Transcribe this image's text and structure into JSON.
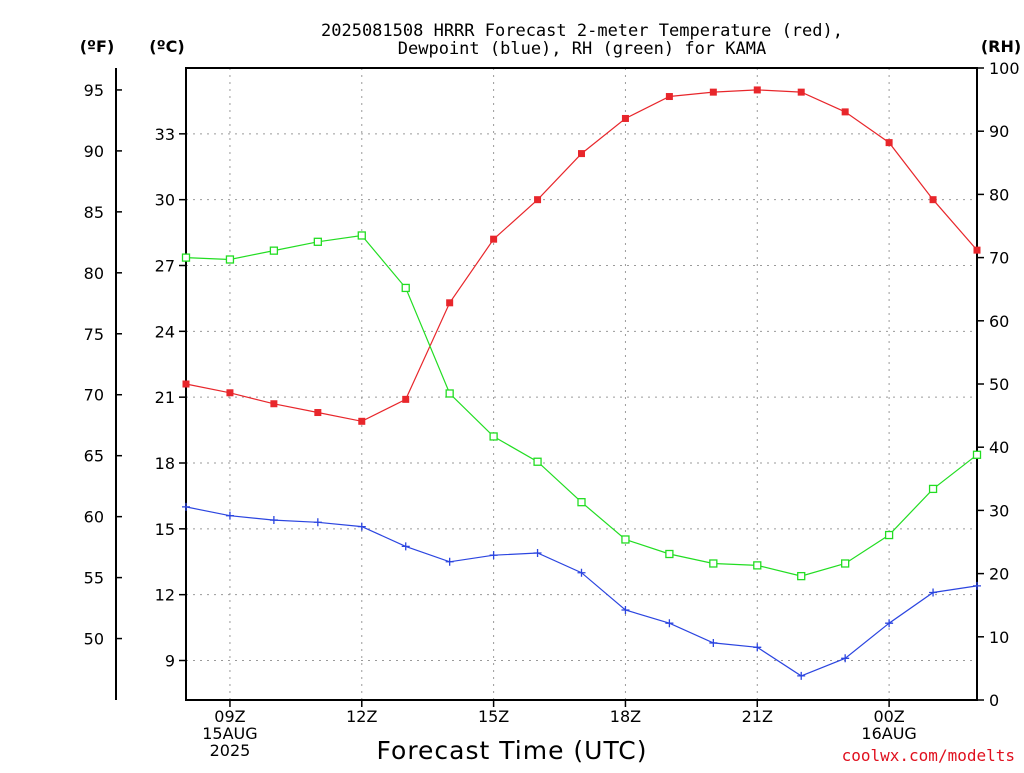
{
  "chart_data": {
    "type": "line",
    "title_lines": [
      "2025081508 HRRR Forecast 2-meter Temperature (red),",
      "Dewpoint (blue), RH (green) for KAMA"
    ],
    "xlabel": "Forecast Time (UTC)",
    "credit": "coolwx.com/modelts",
    "units": {
      "f": "(ºF)",
      "c": "(ºC)",
      "rh": "(RH)"
    },
    "x_hours": [
      8,
      9,
      10,
      11,
      12,
      13,
      14,
      15,
      16,
      17,
      18,
      19,
      20,
      21,
      22,
      23,
      24,
      25,
      26
    ],
    "x_range": [
      8,
      26
    ],
    "x_ticks": [
      {
        "hour": 9,
        "lines": [
          "09Z",
          "15AUG",
          "2025"
        ]
      },
      {
        "hour": 12,
        "lines": [
          "12Z"
        ]
      },
      {
        "hour": 15,
        "lines": [
          "15Z"
        ]
      },
      {
        "hour": 18,
        "lines": [
          "18Z"
        ]
      },
      {
        "hour": 21,
        "lines": [
          "21Z"
        ]
      },
      {
        "hour": 24,
        "lines": [
          "00Z",
          "16AUG"
        ]
      }
    ],
    "celsius_axis": {
      "range": [
        7.2,
        36.0
      ],
      "ticks": [
        9,
        12,
        15,
        18,
        21,
        24,
        27,
        30,
        33
      ]
    },
    "fahrenheit_axis": {
      "ticks": [
        50,
        55,
        60,
        65,
        70,
        75,
        80,
        85,
        90,
        95
      ]
    },
    "rh_axis": {
      "range": [
        0,
        100
      ],
      "ticks": [
        0,
        10,
        20,
        30,
        40,
        50,
        60,
        70,
        80,
        90,
        100
      ]
    },
    "series": [
      {
        "name": "Temperature",
        "axis": "celsius",
        "color": "#e8262b",
        "marker": "filled-square",
        "values": [
          21.6,
          21.2,
          20.7,
          20.3,
          19.9,
          20.9,
          25.3,
          28.2,
          30.0,
          32.1,
          33.7,
          34.7,
          34.9,
          35.0,
          34.9,
          34.0,
          32.6,
          30.0,
          27.7
        ]
      },
      {
        "name": "Dewpoint",
        "axis": "celsius",
        "color": "#2b45e0",
        "marker": "plus",
        "values": [
          16.0,
          15.6,
          15.4,
          15.3,
          15.1,
          14.2,
          13.5,
          13.8,
          13.9,
          13.0,
          11.3,
          10.7,
          9.8,
          9.6,
          8.3,
          9.1,
          10.7,
          12.1,
          12.4
        ]
      },
      {
        "name": "RH",
        "axis": "rh",
        "color": "#22dd22",
        "marker": "open-square",
        "values": [
          70.0,
          69.7,
          71.1,
          72.5,
          73.5,
          65.2,
          48.5,
          41.7,
          37.7,
          31.3,
          25.4,
          23.1,
          21.6,
          21.3,
          19.6,
          21.6,
          26.1,
          33.4,
          38.8
        ]
      }
    ],
    "grid": "dotted"
  }
}
